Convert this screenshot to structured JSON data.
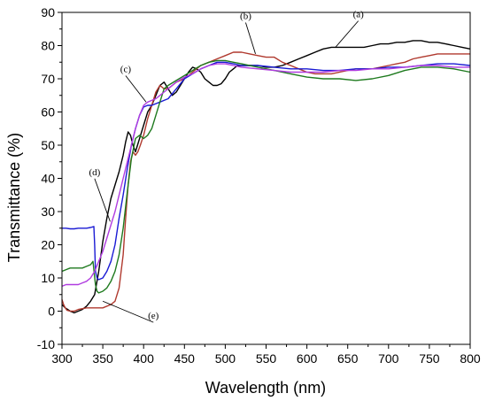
{
  "chart_data": {
    "type": "line",
    "xlabel": "Wavelength (nm)",
    "ylabel": "Transmittance (%)",
    "xlim": [
      300,
      800
    ],
    "ylim": [
      -10,
      90
    ],
    "xticks": [
      300,
      350,
      400,
      450,
      500,
      550,
      600,
      650,
      700,
      750,
      800
    ],
    "yticks": [
      -10,
      0,
      10,
      20,
      30,
      40,
      50,
      60,
      70,
      80,
      90
    ],
    "grid": false,
    "legend": "none",
    "series": [
      {
        "color": "#000000",
        "x": [
          300,
          302,
          304,
          307,
          310,
          315,
          320,
          325,
          330,
          335,
          340,
          345,
          350,
          355,
          360,
          365,
          370,
          375,
          378,
          381,
          384,
          387,
          390,
          395,
          400,
          405,
          410,
          415,
          420,
          425,
          430,
          435,
          440,
          445,
          450,
          455,
          460,
          465,
          470,
          475,
          480,
          485,
          490,
          495,
          500,
          505,
          510,
          515,
          520,
          525,
          530,
          540,
          550,
          560,
          570,
          580,
          590,
          600,
          610,
          620,
          630,
          640,
          650,
          660,
          670,
          680,
          690,
          700,
          710,
          720,
          730,
          740,
          750,
          760,
          770,
          780,
          790,
          800
        ],
        "y": [
          2,
          1.5,
          1,
          0.5,
          0,
          -0.5,
          0,
          0.5,
          1.5,
          3,
          5,
          12,
          21,
          28,
          34,
          38,
          42,
          47,
          51,
          54,
          53,
          50,
          48,
          52,
          56,
          60,
          62,
          65,
          68,
          69,
          67,
          65,
          66,
          68,
          70,
          72,
          73.5,
          73,
          72,
          70,
          69,
          68,
          68,
          68.5,
          70,
          72,
          73,
          74,
          74,
          74,
          74,
          74,
          73.5,
          73.5,
          74,
          75,
          76,
          77,
          78,
          79,
          79.5,
          79.5,
          79.5,
          79.5,
          79.5,
          80,
          80.5,
          80.5,
          81,
          81,
          81.5,
          81.5,
          81,
          81,
          80.5,
          80,
          79.5,
          79
        ]
      },
      {
        "color": "#b0392e",
        "x": [
          300,
          302,
          304,
          306,
          310,
          315,
          320,
          330,
          340,
          350,
          360,
          365,
          370,
          375,
          378,
          381,
          384,
          387,
          390,
          393,
          396,
          400,
          405,
          410,
          415,
          420,
          425,
          430,
          435,
          440,
          450,
          460,
          470,
          480,
          490,
          500,
          510,
          520,
          530,
          540,
          550,
          560,
          570,
          580,
          590,
          600,
          610,
          620,
          630,
          640,
          650,
          660,
          670,
          680,
          690,
          700,
          710,
          720,
          730,
          740,
          750,
          760,
          770,
          780,
          790,
          800
        ],
        "y": [
          3.5,
          2,
          1,
          0.3,
          0,
          0,
          0.5,
          1,
          1,
          1,
          2,
          3,
          7,
          17,
          28,
          38,
          45,
          48,
          47,
          48,
          50,
          53,
          58,
          62,
          66,
          68,
          67,
          67,
          68,
          69,
          70,
          72,
          74,
          75,
          76,
          77,
          78,
          78,
          77.5,
          77,
          76.5,
          76.5,
          75,
          74,
          73,
          72,
          71.5,
          71.5,
          71.5,
          72,
          72.5,
          73,
          73,
          73,
          73.5,
          74,
          74.5,
          75,
          76,
          76.5,
          77,
          77.5,
          77.5,
          77.5,
          77.5,
          77.5
        ]
      },
      {
        "color": "#1a1ad4",
        "x": [
          300,
          305,
          310,
          315,
          320,
          325,
          330,
          335,
          339,
          340,
          341,
          343,
          345,
          350,
          355,
          360,
          365,
          370,
          375,
          380,
          385,
          390,
          395,
          400,
          405,
          410,
          415,
          420,
          425,
          430,
          440,
          450,
          460,
          470,
          480,
          490,
          500,
          510,
          520,
          540,
          560,
          580,
          600,
          620,
          640,
          660,
          680,
          700,
          720,
          740,
          760,
          780,
          800
        ],
        "y": [
          25,
          25,
          24.8,
          24.8,
          25,
          25,
          25,
          25.2,
          25.5,
          20,
          12,
          10,
          9.5,
          10,
          12,
          15,
          20,
          28,
          35,
          43,
          50,
          55,
          59,
          61.5,
          62,
          62,
          62.5,
          63,
          63.5,
          64,
          67,
          70,
          71.5,
          73,
          74,
          75,
          75,
          74.5,
          74,
          74,
          73.5,
          73,
          73,
          72.5,
          72.5,
          73,
          73,
          73.5,
          73.5,
          74,
          74.5,
          74.5,
          74
        ]
      },
      {
        "color": "#1e7a1e",
        "x": [
          300,
          305,
          310,
          315,
          320,
          325,
          330,
          335,
          338,
          341,
          343,
          345,
          350,
          355,
          360,
          365,
          370,
          375,
          380,
          385,
          390,
          395,
          400,
          405,
          410,
          415,
          420,
          425,
          430,
          440,
          450,
          460,
          470,
          480,
          490,
          500,
          510,
          520,
          540,
          560,
          580,
          600,
          620,
          640,
          660,
          680,
          700,
          720,
          740,
          760,
          780,
          800
        ],
        "y": [
          12,
          12.5,
          13,
          13,
          13,
          13,
          13.5,
          14,
          15,
          8,
          6,
          5.5,
          6,
          7,
          9,
          12,
          17,
          25,
          36,
          46,
          52,
          53,
          52,
          53,
          55,
          59,
          63,
          67,
          68,
          69.5,
          71,
          72.5,
          74,
          75,
          75.5,
          75.5,
          75,
          74.5,
          73.5,
          72.5,
          71.5,
          70.5,
          70,
          70,
          69.5,
          70,
          71,
          72.5,
          73.5,
          73.5,
          73,
          72
        ]
      },
      {
        "color": "#b03ce0",
        "x": [
          300,
          305,
          310,
          315,
          320,
          325,
          330,
          335,
          340,
          345,
          350,
          355,
          360,
          365,
          370,
          375,
          380,
          385,
          390,
          395,
          400,
          405,
          410,
          415,
          420,
          425,
          430,
          440,
          450,
          460,
          470,
          480,
          490,
          500,
          510,
          520,
          540,
          560,
          580,
          600,
          620,
          640,
          660,
          680,
          700,
          720,
          740,
          760,
          780,
          800
        ],
        "y": [
          7.5,
          8,
          8,
          8,
          8,
          8.5,
          9,
          10,
          12,
          15,
          18,
          22,
          26,
          30,
          35,
          40,
          45,
          50,
          55,
          59,
          62,
          63,
          63.5,
          64,
          65,
          66,
          67,
          69,
          70.5,
          71.5,
          73,
          74,
          74.5,
          74.5,
          74,
          73.5,
          73,
          72.5,
          72,
          72,
          72,
          72.5,
          72.5,
          73,
          73,
          73.5,
          74,
          74,
          73.5,
          73.5
        ]
      }
    ],
    "annotations": [
      {
        "text": "(a)",
        "x": 663,
        "y": 88.5,
        "pointer": [
          635,
          79.5
        ]
      },
      {
        "text": "(b)",
        "x": 525,
        "y": 88,
        "pointer": [
          537,
          77.5
        ]
      },
      {
        "text": "(c)",
        "x": 378,
        "y": 72,
        "pointer": [
          403,
          63
        ]
      },
      {
        "text": "(d)",
        "x": 340,
        "y": 41,
        "pointer": [
          359,
          27
        ]
      },
      {
        "text": "(e)",
        "x": 412,
        "y": -2.3,
        "pointer": [
          350,
          3
        ]
      }
    ]
  }
}
